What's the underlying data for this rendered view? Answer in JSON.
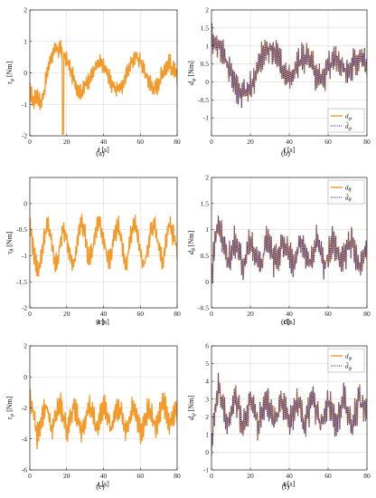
{
  "chart_data": [
    {
      "type": "line",
      "panel": "a",
      "caption": "(a)",
      "xlabel": "t [s]",
      "ylabel": "τ_φ [Nm]",
      "xlim": [
        0,
        80
      ],
      "ylim": [
        -2,
        2
      ],
      "xticks": [
        0,
        20,
        40,
        60,
        80
      ],
      "yticks": [
        -2,
        -1,
        0,
        1,
        2
      ],
      "grid": true,
      "legend": null,
      "series": [
        {
          "name": "",
          "color": "#f39a2b",
          "style": "solid",
          "x": [
            0,
            2,
            4,
            6,
            8,
            10,
            12,
            14,
            16,
            18,
            20,
            22,
            24,
            26,
            28,
            30,
            32,
            34,
            36,
            38,
            40,
            42,
            44,
            46,
            48,
            50,
            52,
            54,
            56,
            58,
            60,
            62,
            64,
            66,
            68,
            70,
            72,
            74,
            76,
            78,
            80
          ],
          "y": [
            -0.6,
            -0.9,
            -0.7,
            -1.0,
            -0.5,
            0.2,
            0.6,
            0.7,
            0.8,
            0.6,
            0.4,
            0.1,
            -0.2,
            -0.5,
            -0.6,
            -0.4,
            -0.2,
            0.0,
            0.2,
            0.3,
            0.2,
            0.0,
            -0.3,
            -0.5,
            -0.5,
            -0.4,
            -0.1,
            0.2,
            0.4,
            0.5,
            0.4,
            0.1,
            -0.2,
            -0.4,
            -0.5,
            -0.3,
            0.0,
            0.2,
            0.3,
            0.1,
            -0.2
          ],
          "amplitude": 0.35,
          "min_label": -1.95
        }
      ]
    },
    {
      "type": "line",
      "panel": "b",
      "caption": "(b)",
      "xlabel": "t [s]",
      "ylabel": "d_φ [Nm]",
      "xlim": [
        0,
        80
      ],
      "ylim": [
        -1.5,
        2
      ],
      "xticks": [
        0,
        20,
        40,
        60,
        80
      ],
      "yticks": [
        -1,
        -0.5,
        0,
        0.5,
        1,
        1.5,
        2
      ],
      "grid": true,
      "legend": "bottom-right",
      "series": [
        {
          "name": "d_φ",
          "color": "#f39a2b",
          "style": "solid",
          "x": [
            0,
            2,
            4,
            6,
            8,
            10,
            12,
            14,
            16,
            18,
            20,
            22,
            24,
            26,
            28,
            30,
            32,
            34,
            36,
            38,
            40,
            42,
            44,
            46,
            48,
            50,
            52,
            54,
            56,
            58,
            60,
            62,
            64,
            66,
            68,
            70,
            72,
            74,
            76,
            78,
            80
          ],
          "y": [
            1.2,
            1.1,
            1.0,
            0.8,
            0.5,
            0.2,
            0.0,
            -0.2,
            -0.3,
            -0.3,
            -0.2,
            0.1,
            0.4,
            0.7,
            0.9,
            1.0,
            0.9,
            0.7,
            0.4,
            0.2,
            0.1,
            0.2,
            0.4,
            0.6,
            0.7,
            0.6,
            0.4,
            0.2,
            0.1,
            0.2,
            0.4,
            0.6,
            0.7,
            0.6,
            0.4,
            0.3,
            0.4,
            0.6,
            0.7,
            0.6,
            0.5
          ],
          "amplitude": 0.55
        },
        {
          "name": "d̂_φ",
          "color": "#2a3bbf",
          "style": "dotted",
          "x": [
            0,
            2,
            4,
            6,
            8,
            10,
            12,
            14,
            16,
            18,
            20,
            22,
            24,
            26,
            28,
            30,
            32,
            34,
            36,
            38,
            40,
            42,
            44,
            46,
            48,
            50,
            52,
            54,
            56,
            58,
            60,
            62,
            64,
            66,
            68,
            70,
            72,
            74,
            76,
            78,
            80
          ],
          "y": [
            1.2,
            1.1,
            1.0,
            0.8,
            0.5,
            0.2,
            0.0,
            -0.2,
            -0.3,
            -0.3,
            -0.2,
            0.1,
            0.4,
            0.7,
            0.9,
            1.0,
            0.9,
            0.7,
            0.4,
            0.2,
            0.1,
            0.2,
            0.4,
            0.6,
            0.7,
            0.6,
            0.4,
            0.2,
            0.1,
            0.2,
            0.4,
            0.6,
            0.7,
            0.6,
            0.4,
            0.3,
            0.4,
            0.6,
            0.7,
            0.6,
            0.5
          ],
          "amplitude": 0.55
        }
      ]
    },
    {
      "type": "line",
      "panel": "c",
      "caption": "(c)",
      "xlabel": "t [s]",
      "ylabel": "τ_θ [Nm]",
      "xlim": [
        0,
        80
      ],
      "ylim": [
        -2,
        0.5
      ],
      "xticks": [
        0,
        20,
        40,
        60,
        80
      ],
      "yticks": [
        -2,
        -1.5,
        -1,
        -0.5,
        0
      ],
      "grid": true,
      "legend": null,
      "series": [
        {
          "name": "",
          "color": "#f39a2b",
          "style": "solid",
          "x": [
            0,
            2,
            4,
            6,
            8,
            10,
            12,
            14,
            16,
            18,
            20,
            22,
            24,
            26,
            28,
            30,
            32,
            34,
            36,
            38,
            40,
            42,
            44,
            46,
            48,
            50,
            52,
            54,
            56,
            58,
            60,
            62,
            64,
            66,
            68,
            70,
            72,
            74,
            76,
            78,
            80
          ],
          "y": [
            -0.4,
            -0.9,
            -1.3,
            -1.1,
            -0.6,
            -0.4,
            -0.8,
            -1.2,
            -0.9,
            -0.5,
            -0.6,
            -1.0,
            -1.2,
            -0.7,
            -0.3,
            -0.6,
            -1.1,
            -0.9,
            -0.5,
            -0.3,
            -0.7,
            -1.0,
            -1.1,
            -0.6,
            -0.4,
            -0.8,
            -1.2,
            -0.8,
            -0.4,
            -0.5,
            -0.9,
            -1.2,
            -0.9,
            -0.5,
            -0.4,
            -0.8,
            -1.1,
            -0.7,
            -0.4,
            -0.6,
            -0.9
          ],
          "amplitude": 0.25
        }
      ]
    },
    {
      "type": "line",
      "panel": "d",
      "caption": "(d)",
      "xlabel": "t [s]",
      "ylabel": "d_θ [Nm]",
      "xlim": [
        0,
        80
      ],
      "ylim": [
        -0.5,
        2
      ],
      "xticks": [
        0,
        20,
        40,
        60,
        80
      ],
      "yticks": [
        -0.5,
        0,
        0.5,
        1,
        1.5,
        2
      ],
      "grid": true,
      "legend": "top-right",
      "series": [
        {
          "name": "d_θ",
          "color": "#f39a2b",
          "style": "solid",
          "x": [
            0,
            2,
            4,
            6,
            8,
            10,
            12,
            14,
            16,
            18,
            20,
            22,
            24,
            26,
            28,
            30,
            32,
            34,
            36,
            38,
            40,
            42,
            44,
            46,
            48,
            50,
            52,
            54,
            56,
            58,
            60,
            62,
            64,
            66,
            68,
            70,
            72,
            74,
            76,
            78,
            80
          ],
          "y": [
            0.0,
            0.9,
            1.1,
            0.8,
            0.4,
            0.5,
            0.8,
            0.6,
            0.3,
            0.5,
            0.8,
            0.6,
            0.3,
            0.4,
            0.8,
            0.7,
            0.4,
            0.4,
            0.7,
            0.7,
            0.5,
            0.3,
            0.6,
            0.8,
            0.5,
            0.3,
            0.5,
            0.8,
            0.6,
            0.3,
            0.5,
            0.8,
            0.7,
            0.4,
            0.4,
            0.7,
            0.8,
            0.5,
            0.3,
            0.5,
            0.7
          ],
          "amplitude": 0.35
        },
        {
          "name": "d̂_θ",
          "color": "#2a3bbf",
          "style": "dotted",
          "x": [
            0,
            2,
            4,
            6,
            8,
            10,
            12,
            14,
            16,
            18,
            20,
            22,
            24,
            26,
            28,
            30,
            32,
            34,
            36,
            38,
            40,
            42,
            44,
            46,
            48,
            50,
            52,
            54,
            56,
            58,
            60,
            62,
            64,
            66,
            68,
            70,
            72,
            74,
            76,
            78,
            80
          ],
          "y": [
            0.0,
            0.9,
            1.1,
            0.8,
            0.4,
            0.5,
            0.8,
            0.6,
            0.3,
            0.5,
            0.8,
            0.6,
            0.3,
            0.4,
            0.8,
            0.7,
            0.4,
            0.4,
            0.7,
            0.7,
            0.5,
            0.3,
            0.6,
            0.8,
            0.5,
            0.3,
            0.5,
            0.8,
            0.6,
            0.3,
            0.5,
            0.8,
            0.7,
            0.4,
            0.4,
            0.7,
            0.8,
            0.5,
            0.3,
            0.5,
            0.7
          ],
          "amplitude": 0.35
        }
      ]
    },
    {
      "type": "line",
      "panel": "e",
      "caption": "(e)",
      "xlabel": "t [s]",
      "ylabel": "τ_ψ [Nm]",
      "xlim": [
        0,
        80
      ],
      "ylim": [
        -6,
        2
      ],
      "xticks": [
        0,
        20,
        40,
        60,
        80
      ],
      "yticks": [
        -6,
        -4,
        -2,
        0,
        2
      ],
      "grid": true,
      "legend": null,
      "series": [
        {
          "name": "",
          "color": "#f39a2b",
          "style": "solid",
          "x": [
            0,
            2,
            4,
            6,
            8,
            10,
            12,
            14,
            16,
            18,
            20,
            22,
            24,
            26,
            28,
            30,
            32,
            34,
            36,
            38,
            40,
            42,
            44,
            46,
            48,
            50,
            52,
            54,
            56,
            58,
            60,
            62,
            64,
            66,
            68,
            70,
            72,
            74,
            76,
            78,
            80
          ],
          "y": [
            -1.2,
            -2.5,
            -3.8,
            -3.0,
            -1.8,
            -2.2,
            -3.5,
            -2.6,
            -1.6,
            -2.4,
            -3.4,
            -2.8,
            -1.9,
            -2.5,
            -3.6,
            -2.9,
            -1.8,
            -2.3,
            -3.3,
            -2.7,
            -1.7,
            -2.4,
            -3.5,
            -2.9,
            -1.9,
            -2.5,
            -3.4,
            -2.7,
            -1.8,
            -2.4,
            -3.6,
            -3.0,
            -2.0,
            -2.3,
            -3.3,
            -2.8,
            -1.6,
            -2.2,
            -3.2,
            -2.6,
            -2.0
          ],
          "amplitude": 1.0
        }
      ]
    },
    {
      "type": "line",
      "panel": "f",
      "caption": "(f)",
      "xlabel": "t [s]",
      "ylabel": "d_ψ [Nm]",
      "xlim": [
        0,
        80
      ],
      "ylim": [
        -1,
        6
      ],
      "xticks": [
        0,
        20,
        40,
        60,
        80
      ],
      "yticks": [
        -1,
        0,
        1,
        2,
        3,
        4,
        5,
        6
      ],
      "grid": true,
      "legend": "top-right",
      "series": [
        {
          "name": "d_ψ",
          "color": "#f39a2b",
          "style": "solid",
          "x": [
            0,
            2,
            4,
            6,
            8,
            10,
            12,
            14,
            16,
            18,
            20,
            22,
            24,
            26,
            28,
            30,
            32,
            34,
            36,
            38,
            40,
            42,
            44,
            46,
            48,
            50,
            52,
            54,
            56,
            58,
            60,
            62,
            64,
            66,
            68,
            70,
            72,
            74,
            76,
            78,
            80
          ],
          "y": [
            0.2,
            2.8,
            3.6,
            2.6,
            1.6,
            2.2,
            3.2,
            2.4,
            1.5,
            2.1,
            3.0,
            2.5,
            1.6,
            2.2,
            3.1,
            2.6,
            1.7,
            2.1,
            3.0,
            2.6,
            1.7,
            2.2,
            3.1,
            2.5,
            1.6,
            2.2,
            3.0,
            2.4,
            1.5,
            2.0,
            2.9,
            2.5,
            1.6,
            2.2,
            3.0,
            2.4,
            1.4,
            2.1,
            3.0,
            2.6,
            2.0
          ],
          "amplitude": 1.1
        },
        {
          "name": "d̂_ψ",
          "color": "#2a3bbf",
          "style": "dotted",
          "x": [
            0,
            2,
            4,
            6,
            8,
            10,
            12,
            14,
            16,
            18,
            20,
            22,
            24,
            26,
            28,
            30,
            32,
            34,
            36,
            38,
            40,
            42,
            44,
            46,
            48,
            50,
            52,
            54,
            56,
            58,
            60,
            62,
            64,
            66,
            68,
            70,
            72,
            74,
            76,
            78,
            80
          ],
          "y": [
            0.2,
            2.8,
            3.6,
            2.6,
            1.6,
            2.2,
            3.2,
            2.4,
            1.5,
            2.1,
            3.0,
            2.5,
            1.6,
            2.2,
            3.1,
            2.6,
            1.7,
            2.1,
            3.0,
            2.6,
            1.7,
            2.2,
            3.1,
            2.5,
            1.6,
            2.2,
            3.0,
            2.4,
            1.5,
            2.0,
            2.9,
            2.5,
            1.6,
            2.2,
            3.0,
            2.4,
            1.4,
            2.1,
            3.0,
            2.6,
            2.0
          ],
          "amplitude": 1.1
        }
      ]
    }
  ]
}
